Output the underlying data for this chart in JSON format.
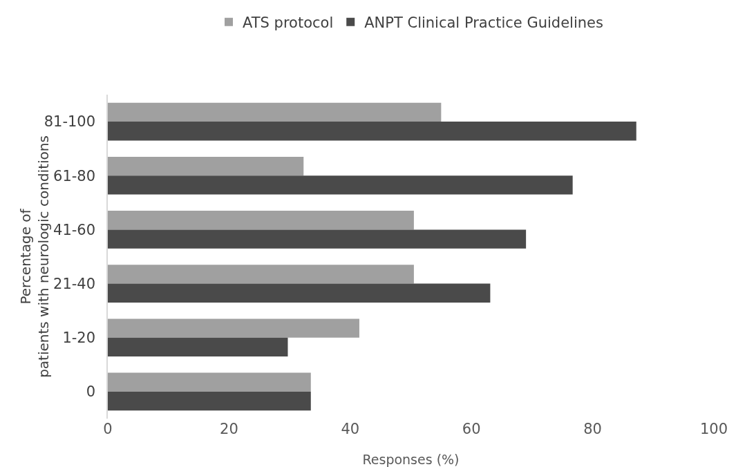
{
  "chart_data": {
    "type": "bar",
    "orientation": "horizontal",
    "xlabel": "Responses (%)",
    "ylabel": "Percentage of\npatients with neurologic conditions",
    "categories": [
      "81-100",
      "61-80",
      "41-60",
      "21-40",
      "1-20",
      "0"
    ],
    "series": [
      {
        "name": "ATS protocol",
        "color": "#a0a0a0",
        "values": [
          55,
          32.3,
          50.5,
          50.5,
          41.5,
          33.5
        ]
      },
      {
        "name": "ANPT Clinical Practice Guidelines",
        "color": "#4a4a4a",
        "values": [
          87.2,
          76.7,
          69,
          63.1,
          29.7,
          33.5
        ]
      }
    ],
    "xlim": [
      0,
      100
    ],
    "xticks": [
      0,
      20,
      40,
      60,
      80,
      100
    ],
    "grid": false,
    "legend": "top"
  }
}
